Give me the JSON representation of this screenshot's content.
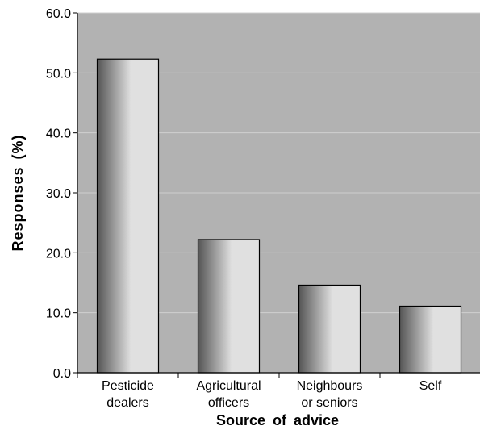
{
  "chart_data": {
    "type": "bar",
    "categories": [
      [
        "Pesticide",
        "dealers"
      ],
      [
        "Agricultural",
        "officers"
      ],
      [
        "Neighbours",
        "or seniors"
      ],
      [
        "Self"
      ]
    ],
    "values": [
      52.3,
      22.2,
      14.6,
      11.1
    ],
    "xlabel": "Source of advice",
    "ylabel": "Responses (%)",
    "ylim": [
      0,
      60
    ],
    "yticks": [
      "0.0",
      "10.0",
      "20.0",
      "30.0",
      "40.0",
      "50.0",
      "60.0"
    ],
    "grid": true,
    "colors": {
      "plot_background": "#b2b2b2",
      "gridline": "#cfcfcf",
      "bar_dark": "#555555",
      "bar_light": "#e0e0e0",
      "axis": "#000000"
    }
  }
}
